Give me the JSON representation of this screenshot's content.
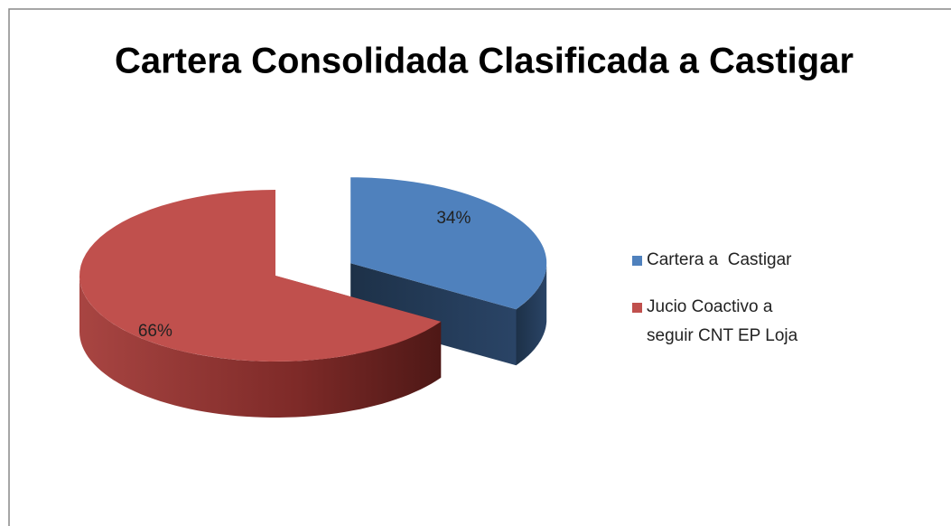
{
  "chart_data": {
    "type": "pie3d",
    "title": "Cartera Consolidada Clasificada a Castigar",
    "categories": [
      "Cartera a  Castigar",
      "Jucio Coactivo a seguir CNT EP Loja"
    ],
    "values": [
      34,
      66
    ],
    "value_labels": [
      "34%",
      "66%"
    ],
    "colors": [
      "#4f81bd",
      "#c0504d"
    ],
    "legend": "right"
  }
}
